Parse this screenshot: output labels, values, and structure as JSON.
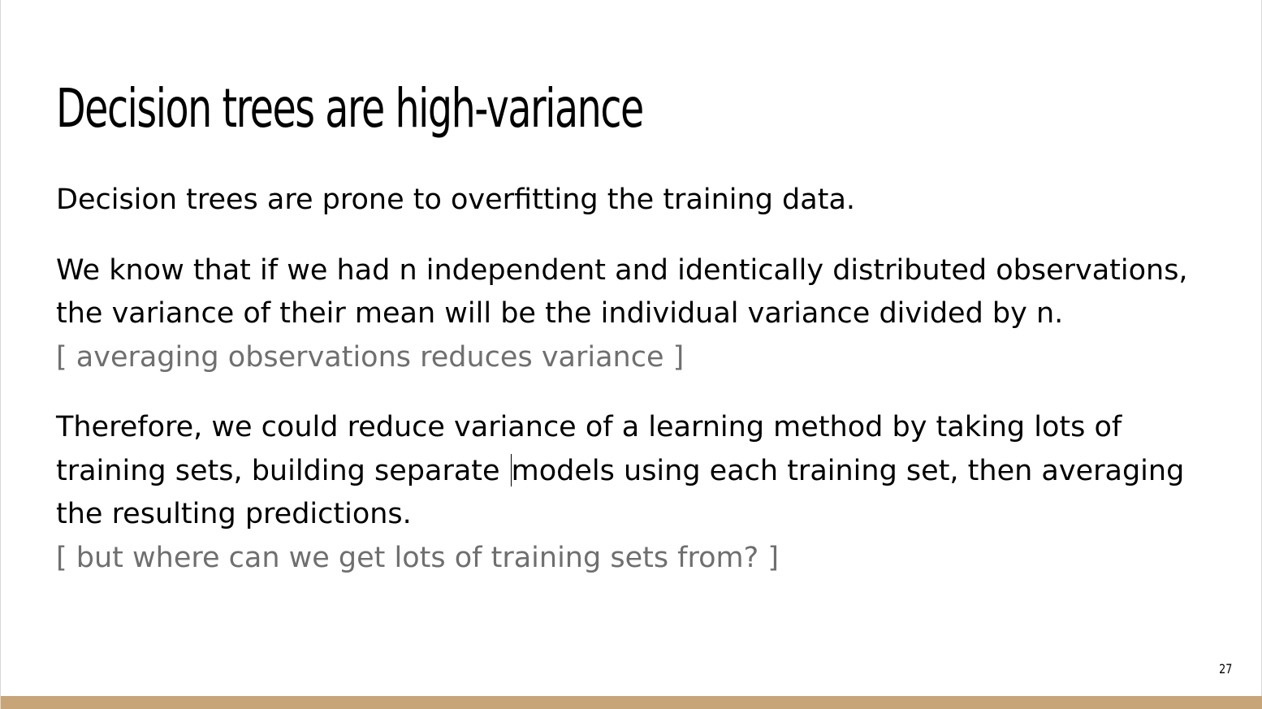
{
  "slide": {
    "title": "Decision trees are high-variance",
    "paragraphs": [
      {
        "text": "Decision trees are prone to overfitting the training data."
      },
      {
        "text": "We know that if we had n independent and identically distributed observations, the variance of their mean will be the individual variance divided by n.",
        "note": "[ averaging observations reduces variance ]"
      },
      {
        "text_before_cursor": "Therefore, we could reduce variance of a learning method by taking lots of training sets, building separate ",
        "text_after_cursor": "models using each training set, then averaging the resulting predictions.",
        "note": "[ but where can we get lots of training sets from? ]"
      }
    ],
    "page_number": "27"
  },
  "colors": {
    "accent_bar": "#c8a578",
    "note_text": "#6f6f6f",
    "body_text": "#000000"
  }
}
